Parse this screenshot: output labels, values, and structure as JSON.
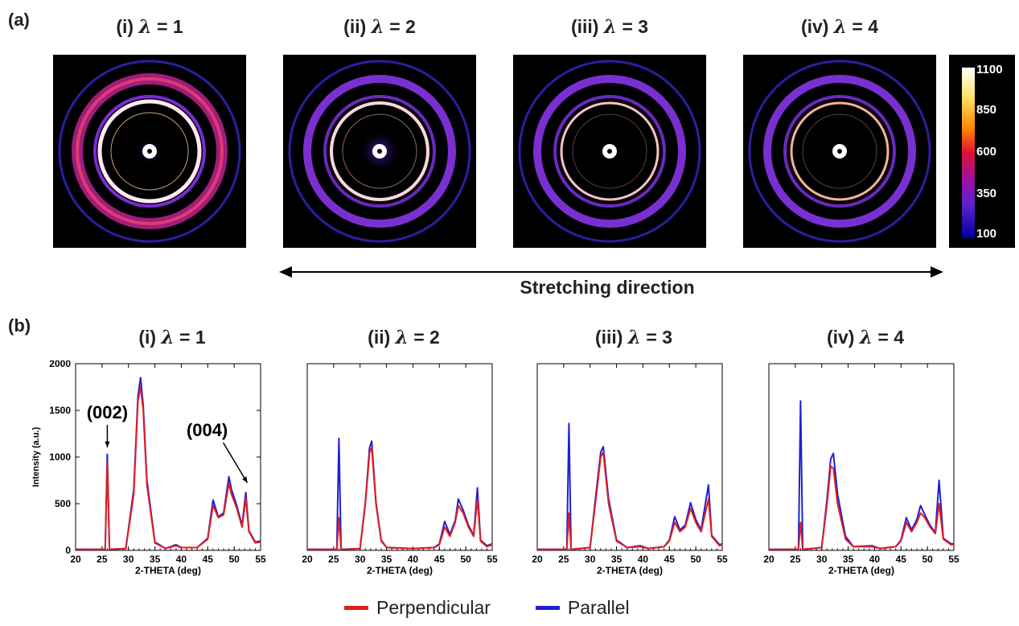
{
  "figure": {
    "panel_a_label": "(a)",
    "panel_b_label": "(b)",
    "stretch_label": "Stretching direction",
    "colorbar": {
      "ticks": [
        "1100",
        "850",
        "600",
        "350",
        "100"
      ]
    },
    "legend": [
      {
        "label": "Perpendicular",
        "color": "#e01e1e"
      },
      {
        "label": "Parallel",
        "color": "#2020d0"
      }
    ]
  },
  "diffraction_titles": [
    {
      "prefix": "(i) ",
      "lambda": "λ",
      "suffix": " = 1"
    },
    {
      "prefix": "(ii) ",
      "lambda": "λ",
      "suffix": " = 2"
    },
    {
      "prefix": "(iii) ",
      "lambda": "λ",
      "suffix": " = 3"
    },
    {
      "prefix": "(iv) ",
      "lambda": "λ",
      "suffix": " = 4"
    }
  ],
  "plot_titles": [
    {
      "prefix": "(i) ",
      "lambda": "λ",
      "suffix": " = 1"
    },
    {
      "prefix": "(ii) ",
      "lambda": "λ",
      "suffix": " = 2"
    },
    {
      "prefix": "(iii) ",
      "lambda": "λ",
      "suffix": " = 3"
    },
    {
      "prefix": "(iv) ",
      "lambda": "λ",
      "suffix": " = 4"
    }
  ],
  "chart_data": [
    {
      "type": "line",
      "title": "(i) λ = 1",
      "xlabel": "2-THETA (deg)",
      "ylabel": "Intensity (a.u.)",
      "xlim": [
        20,
        55
      ],
      "ylim": [
        0,
        2000
      ],
      "xticks": [
        20,
        25,
        30,
        35,
        40,
        45,
        50,
        55
      ],
      "yticks": [
        0,
        500,
        1000,
        1500,
        2000
      ],
      "annotations": [
        {
          "text": "(002)",
          "x": 26,
          "y": 1000
        },
        {
          "text": "(004)",
          "x": 52.5,
          "y": 620
        }
      ],
      "series": [
        {
          "name": "Perpendicular",
          "points": [
            [
              20,
              10
            ],
            [
              25.6,
              10
            ],
            [
              26,
              950
            ],
            [
              26.4,
              10
            ],
            [
              29.5,
              20
            ],
            [
              31,
              600
            ],
            [
              31.8,
              1600
            ],
            [
              32.3,
              1750
            ],
            [
              32.8,
              1500
            ],
            [
              33.5,
              700
            ],
            [
              35,
              80
            ],
            [
              37,
              20
            ],
            [
              39,
              50
            ],
            [
              40,
              30
            ],
            [
              43,
              30
            ],
            [
              45,
              120
            ],
            [
              46,
              480
            ],
            [
              47,
              350
            ],
            [
              48,
              380
            ],
            [
              49,
              720
            ],
            [
              49.5,
              600
            ],
            [
              50.5,
              450
            ],
            [
              51.5,
              250
            ],
            [
              52.2,
              560
            ],
            [
              52.8,
              200
            ],
            [
              54,
              80
            ],
            [
              55,
              90
            ]
          ]
        },
        {
          "name": "Parallel",
          "points": [
            [
              20,
              10
            ],
            [
              25.6,
              10
            ],
            [
              26,
              1030
            ],
            [
              26.4,
              10
            ],
            [
              29.5,
              20
            ],
            [
              31,
              650
            ],
            [
              31.8,
              1650
            ],
            [
              32.3,
              1850
            ],
            [
              32.8,
              1550
            ],
            [
              33.5,
              750
            ],
            [
              35,
              90
            ],
            [
              37,
              20
            ],
            [
              39,
              60
            ],
            [
              40,
              30
            ],
            [
              43,
              30
            ],
            [
              45,
              130
            ],
            [
              46,
              540
            ],
            [
              47,
              360
            ],
            [
              48,
              400
            ],
            [
              49,
              790
            ],
            [
              49.5,
              650
            ],
            [
              50.5,
              480
            ],
            [
              51.5,
              270
            ],
            [
              52.2,
              620
            ],
            [
              52.8,
              210
            ],
            [
              54,
              90
            ],
            [
              55,
              100
            ]
          ]
        }
      ]
    },
    {
      "type": "line",
      "title": "(ii) λ = 2",
      "xlabel": "2-THETA (deg)",
      "xlim": [
        20,
        55
      ],
      "ylim": [
        0,
        2000
      ],
      "xticks": [
        20,
        25,
        30,
        35,
        40,
        45,
        50,
        55
      ],
      "series": [
        {
          "name": "Perpendicular",
          "points": [
            [
              20,
              10
            ],
            [
              25.6,
              10
            ],
            [
              26,
              350
            ],
            [
              26.4,
              10
            ],
            [
              30,
              20
            ],
            [
              31,
              500
            ],
            [
              31.8,
              1050
            ],
            [
              32.2,
              1100
            ],
            [
              33,
              500
            ],
            [
              34,
              100
            ],
            [
              35,
              30
            ],
            [
              40,
              20
            ],
            [
              44,
              30
            ],
            [
              45,
              60
            ],
            [
              46,
              250
            ],
            [
              47,
              150
            ],
            [
              48,
              300
            ],
            [
              48.6,
              480
            ],
            [
              49.5,
              400
            ],
            [
              50.5,
              250
            ],
            [
              51.5,
              150
            ],
            [
              52.2,
              550
            ],
            [
              52.8,
              100
            ],
            [
              54,
              40
            ],
            [
              55,
              60
            ]
          ]
        },
        {
          "name": "Parallel",
          "points": [
            [
              20,
              10
            ],
            [
              25.6,
              10
            ],
            [
              26,
              1200
            ],
            [
              26.4,
              10
            ],
            [
              30,
              20
            ],
            [
              31,
              520
            ],
            [
              31.8,
              1100
            ],
            [
              32.2,
              1170
            ],
            [
              33,
              520
            ],
            [
              34,
              110
            ],
            [
              35,
              30
            ],
            [
              40,
              20
            ],
            [
              44,
              30
            ],
            [
              45,
              70
            ],
            [
              46,
              310
            ],
            [
              47,
              170
            ],
            [
              48,
              320
            ],
            [
              48.6,
              550
            ],
            [
              49.5,
              430
            ],
            [
              50.5,
              270
            ],
            [
              51.5,
              160
            ],
            [
              52.2,
              670
            ],
            [
              52.8,
              110
            ],
            [
              54,
              50
            ],
            [
              55,
              70
            ]
          ]
        }
      ]
    },
    {
      "type": "line",
      "title": "(iii) λ = 3",
      "xlabel": "2-THETA (deg)",
      "xlim": [
        20,
        55
      ],
      "ylim": [
        0,
        2000
      ],
      "xticks": [
        20,
        25,
        30,
        35,
        40,
        45,
        50,
        55
      ],
      "series": [
        {
          "name": "Perpendicular",
          "points": [
            [
              20,
              10
            ],
            [
              25.6,
              10
            ],
            [
              26,
              400
            ],
            [
              26.4,
              10
            ],
            [
              30,
              30
            ],
            [
              31.2,
              600
            ],
            [
              32,
              1000
            ],
            [
              32.5,
              1050
            ],
            [
              33.5,
              500
            ],
            [
              35,
              100
            ],
            [
              37,
              30
            ],
            [
              39.5,
              40
            ],
            [
              41,
              20
            ],
            [
              44,
              40
            ],
            [
              45,
              100
            ],
            [
              46,
              300
            ],
            [
              47,
              200
            ],
            [
              48,
              250
            ],
            [
              49,
              450
            ],
            [
              50,
              300
            ],
            [
              51,
              200
            ],
            [
              52.4,
              550
            ],
            [
              53,
              150
            ],
            [
              54.5,
              50
            ],
            [
              55,
              60
            ]
          ]
        },
        {
          "name": "Parallel",
          "points": [
            [
              20,
              10
            ],
            [
              25.6,
              10
            ],
            [
              26,
              1360
            ],
            [
              26.4,
              10
            ],
            [
              30,
              30
            ],
            [
              31.2,
              650
            ],
            [
              32,
              1050
            ],
            [
              32.5,
              1110
            ],
            [
              33.5,
              550
            ],
            [
              35,
              110
            ],
            [
              37,
              30
            ],
            [
              39.5,
              50
            ],
            [
              41,
              20
            ],
            [
              44,
              40
            ],
            [
              45,
              110
            ],
            [
              46,
              360
            ],
            [
              47,
              220
            ],
            [
              48,
              270
            ],
            [
              49,
              510
            ],
            [
              50,
              330
            ],
            [
              51,
              220
            ],
            [
              52.4,
              700
            ],
            [
              53,
              160
            ],
            [
              54.5,
              60
            ],
            [
              55,
              70
            ]
          ]
        }
      ]
    },
    {
      "type": "line",
      "title": "(iv) λ = 4",
      "xlabel": "2-THETA (deg)",
      "xlim": [
        20,
        55
      ],
      "ylim": [
        0,
        2000
      ],
      "xticks": [
        20,
        25,
        30,
        35,
        40,
        45,
        50,
        55
      ],
      "series": [
        {
          "name": "Perpendicular",
          "points": [
            [
              20,
              10
            ],
            [
              25.6,
              10
            ],
            [
              26,
              300
            ],
            [
              26.4,
              10
            ],
            [
              30,
              30
            ],
            [
              31,
              500
            ],
            [
              31.7,
              900
            ],
            [
              32.2,
              880
            ],
            [
              33,
              500
            ],
            [
              34.5,
              120
            ],
            [
              36,
              40
            ],
            [
              39.5,
              40
            ],
            [
              41,
              20
            ],
            [
              44,
              40
            ],
            [
              45,
              100
            ],
            [
              46,
              300
            ],
            [
              47,
              200
            ],
            [
              48,
              300
            ],
            [
              48.7,
              400
            ],
            [
              49.5,
              350
            ],
            [
              50.5,
              250
            ],
            [
              51.5,
              180
            ],
            [
              52.2,
              500
            ],
            [
              53,
              120
            ],
            [
              54.5,
              60
            ],
            [
              55,
              60
            ]
          ]
        },
        {
          "name": "Parallel",
          "points": [
            [
              20,
              10
            ],
            [
              25.6,
              10
            ],
            [
              26,
              1600
            ],
            [
              26.4,
              10
            ],
            [
              30,
              30
            ],
            [
              31,
              550
            ],
            [
              31.7,
              980
            ],
            [
              32.2,
              1040
            ],
            [
              33,
              600
            ],
            [
              34.5,
              150
            ],
            [
              36,
              40
            ],
            [
              39.5,
              50
            ],
            [
              41,
              20
            ],
            [
              44,
              40
            ],
            [
              45,
              110
            ],
            [
              46,
              350
            ],
            [
              47,
              220
            ],
            [
              48,
              330
            ],
            [
              48.7,
              480
            ],
            [
              49.5,
              380
            ],
            [
              50.5,
              270
            ],
            [
              51.5,
              190
            ],
            [
              52.2,
              750
            ],
            [
              53,
              130
            ],
            [
              54.5,
              70
            ],
            [
              55,
              70
            ]
          ]
        }
      ]
    }
  ]
}
